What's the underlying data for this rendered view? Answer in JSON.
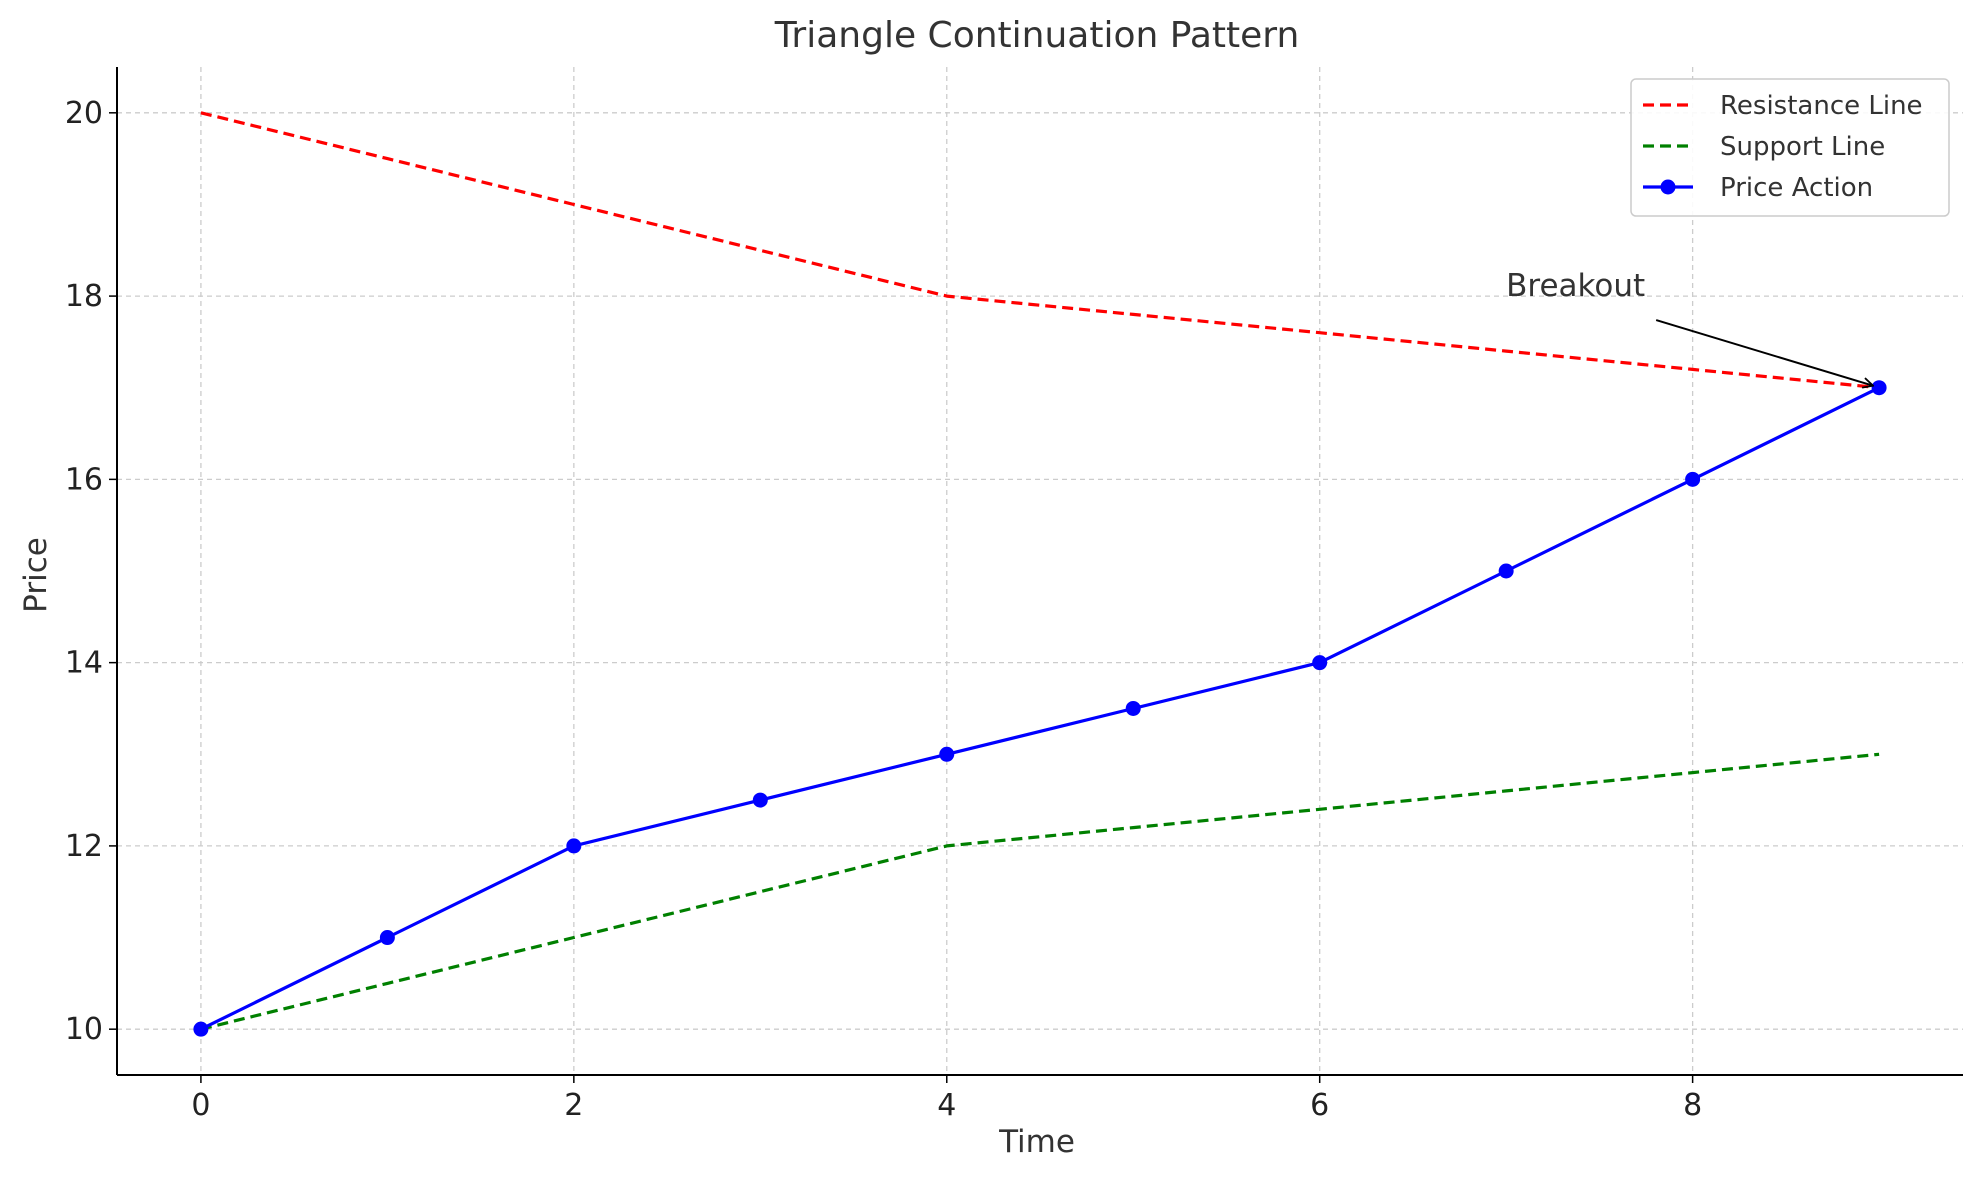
{
  "chart_data": {
    "type": "line",
    "title": "Triangle Continuation Pattern",
    "xlabel": "Time",
    "ylabel": "Price",
    "xlim": [
      -0.45,
      9.45
    ],
    "ylim": [
      9.5,
      20.5
    ],
    "xticks": [
      0,
      2,
      4,
      6,
      8
    ],
    "yticks": [
      10,
      12,
      14,
      16,
      18,
      20
    ],
    "grid": true,
    "legend_position": "top-right",
    "series": [
      {
        "name": "Resistance Line",
        "style": "dashed",
        "color": "#ff0000",
        "markers": false,
        "x": [
          0,
          1,
          2,
          3,
          4,
          5,
          6,
          7,
          8,
          9
        ],
        "values": [
          20,
          19.5,
          19,
          18.5,
          18,
          17.8,
          17.6,
          17.4,
          17.2,
          17
        ]
      },
      {
        "name": "Support Line",
        "style": "dashed",
        "color": "#008000",
        "markers": false,
        "x": [
          0,
          1,
          2,
          3,
          4,
          5,
          6,
          7,
          8,
          9
        ],
        "values": [
          10,
          10.5,
          11,
          11.5,
          12,
          12.2,
          12.4,
          12.6,
          12.8,
          13
        ]
      },
      {
        "name": "Price Action",
        "style": "solid",
        "color": "#0000ff",
        "markers": true,
        "x": [
          0,
          1,
          2,
          3,
          4,
          5,
          6,
          7,
          8,
          9
        ],
        "values": [
          10,
          11,
          12,
          12.5,
          13,
          13.5,
          14,
          15,
          16,
          17
        ]
      }
    ],
    "annotations": [
      {
        "text": "Breakout",
        "point": [
          9,
          17
        ],
        "text_at": [
          7,
          18
        ]
      }
    ]
  }
}
